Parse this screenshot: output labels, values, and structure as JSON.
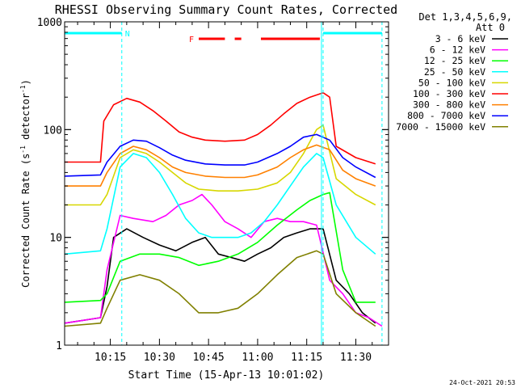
{
  "chart_data": {
    "type": "line",
    "title": "RHESSI Observing Summary Count Rates, Corrected",
    "xlabel": "Start Time (15-Apr-13 10:01:02)",
    "ylabel": "Corrected Count Rate (s⁻¹ detector⁻¹)",
    "ylabel_main": "Corrected Count Rate (s",
    "ylabel_sup1": "-1",
    "ylabel_mid": " detector",
    "ylabel_sup2": "-1",
    "ylabel_end": ")",
    "y_scale": "log",
    "ylim": [
      1,
      1000
    ],
    "xlim": [
      "10:01:02",
      "11:40:00"
    ],
    "x_ticks": [
      "10:15",
      "10:30",
      "10:45",
      "11:00",
      "11:15",
      "11:30"
    ],
    "y_ticks": [
      {
        "value": 1,
        "label": "1"
      },
      {
        "value": 10,
        "label": "10"
      },
      {
        "value": 100,
        "label": "100"
      },
      {
        "value": 1000,
        "label": "1000"
      }
    ],
    "legend_header": [
      "Det 1,3,4,5,6,9,",
      "Att 0"
    ],
    "legend_placement": "right",
    "grid": false,
    "annotations": {
      "night_label": "N",
      "flare_label": "F",
      "night_intervals": [
        [
          "10:01:02",
          "10:18:30"
        ],
        [
          "11:20:00",
          "11:38:00"
        ]
      ],
      "flare_intervals": [
        [
          "10:42:00",
          "10:50:00"
        ],
        [
          "10:53:00",
          "10:55:00"
        ],
        [
          "11:01:00",
          "11:19:00"
        ]
      ],
      "vertical_dashed_lines": [
        "10:18:30",
        "11:20:00",
        "11:38:00"
      ],
      "vertical_solid_line": "11:19:30"
    },
    "series": [
      {
        "name": "3 - 6 keV",
        "color": "#000000",
        "x": [
          "10:01:02",
          "10:12:00",
          "10:14:00",
          "10:16:00",
          "10:20:00",
          "10:25:00",
          "10:30:00",
          "10:35:00",
          "10:40:00",
          "10:44:00",
          "10:48:00",
          "10:52:00",
          "10:56:00",
          "11:00:00",
          "11:04:00",
          "11:08:00",
          "11:12:00",
          "11:16:00",
          "11:20:00",
          "11:24:00",
          "11:28:00",
          "11:32:00",
          "11:36:00"
        ],
        "y": [
          1.6,
          1.8,
          3.5,
          10,
          12,
          10,
          8.5,
          7.5,
          9,
          10,
          7,
          6.5,
          6,
          7,
          8,
          10,
          11,
          12,
          12,
          4,
          3,
          2,
          1.6
        ]
      },
      {
        "name": "6 - 12 keV",
        "color": "#ff00ff",
        "x": [
          "10:01:02",
          "10:12:00",
          "10:14:00",
          "10:18:00",
          "10:22:00",
          "10:28:00",
          "10:32:00",
          "10:36:00",
          "10:40:00",
          "10:43:00",
          "10:46:00",
          "10:50:00",
          "10:54:00",
          "10:58:00",
          "11:02:00",
          "11:06:00",
          "11:10:00",
          "11:14:00",
          "11:18:00",
          "11:22:00",
          "11:26:00",
          "11:30:00",
          "11:34:00",
          "11:38:00"
        ],
        "y": [
          1.6,
          1.8,
          5,
          16,
          15,
          14,
          16,
          20,
          22,
          25,
          20,
          14,
          12,
          10,
          14,
          15,
          14,
          14,
          13,
          4,
          3,
          2,
          1.8,
          1.5
        ]
      },
      {
        "name": "12 - 25 keV",
        "color": "#00ff00",
        "x": [
          "10:01:02",
          "10:12:00",
          "10:14:00",
          "10:18:00",
          "10:24:00",
          "10:30:00",
          "10:36:00",
          "10:42:00",
          "10:48:00",
          "10:54:00",
          "11:00:00",
          "11:06:00",
          "11:12:00",
          "11:16:00",
          "11:20:00",
          "11:22:00",
          "11:26:00",
          "11:30:00",
          "11:36:00"
        ],
        "y": [
          2.5,
          2.6,
          3,
          6,
          7,
          7,
          6.5,
          5.5,
          6,
          7,
          9,
          13,
          18,
          22,
          25,
          26,
          5,
          2.5,
          2.5
        ]
      },
      {
        "name": "25 - 50 keV",
        "color": "#00ffff",
        "x": [
          "10:01:02",
          "10:12:00",
          "10:14:00",
          "10:18:00",
          "10:22:00",
          "10:26:00",
          "10:30:00",
          "10:34:00",
          "10:38:00",
          "10:42:00",
          "10:46:00",
          "10:50:00",
          "10:54:00",
          "10:58:00",
          "11:02:00",
          "11:06:00",
          "11:10:00",
          "11:14:00",
          "11:18:00",
          "11:20:00",
          "11:24:00",
          "11:30:00",
          "11:36:00"
        ],
        "y": [
          7,
          7.5,
          12,
          45,
          60,
          55,
          40,
          25,
          15,
          11,
          10,
          10,
          10,
          11,
          14,
          20,
          30,
          45,
          60,
          55,
          20,
          10,
          7
        ]
      },
      {
        "name": "50 - 100 keV",
        "color": "#d7d700",
        "x": [
          "10:01:02",
          "10:12:00",
          "10:14:00",
          "10:18:00",
          "10:22:00",
          "10:26:00",
          "10:30:00",
          "10:34:00",
          "10:38:00",
          "10:42:00",
          "10:48:00",
          "10:54:00",
          "11:00:00",
          "11:06:00",
          "11:10:00",
          "11:14:00",
          "11:18:00",
          "11:20:00",
          "11:24:00",
          "11:30:00",
          "11:36:00"
        ],
        "y": [
          20,
          20,
          25,
          55,
          65,
          60,
          50,
          40,
          32,
          28,
          27,
          27,
          28,
          32,
          40,
          60,
          100,
          110,
          35,
          25,
          20
        ]
      },
      {
        "name": "100 - 300 keV",
        "color": "#ff0000",
        "x": [
          "10:01:02",
          "10:12:00",
          "10:13:00",
          "10:16:00",
          "10:20:00",
          "10:24:00",
          "10:28:00",
          "10:32:00",
          "10:36:00",
          "10:40:00",
          "10:44:00",
          "10:50:00",
          "10:56:00",
          "11:00:00",
          "11:04:00",
          "11:08:00",
          "11:12:00",
          "11:16:00",
          "11:20:00",
          "11:22:00",
          "11:24:00",
          "11:30:00",
          "11:36:00"
        ],
        "y": [
          50,
          50,
          120,
          170,
          195,
          180,
          150,
          120,
          95,
          85,
          80,
          78,
          80,
          90,
          110,
          140,
          175,
          200,
          220,
          200,
          70,
          55,
          48
        ]
      },
      {
        "name": "300 - 800 keV",
        "color": "#ff8000",
        "x": [
          "10:01:02",
          "10:12:00",
          "10:14:00",
          "10:18:00",
          "10:22:00",
          "10:26:00",
          "10:30:00",
          "10:34:00",
          "10:38:00",
          "10:44:00",
          "10:50:00",
          "10:56:00",
          "11:00:00",
          "11:06:00",
          "11:10:00",
          "11:14:00",
          "11:18:00",
          "11:22:00",
          "11:26:00",
          "11:30:00",
          "11:36:00"
        ],
        "y": [
          30,
          30,
          40,
          60,
          70,
          65,
          55,
          45,
          40,
          37,
          36,
          36,
          38,
          45,
          55,
          65,
          72,
          65,
          42,
          35,
          30
        ]
      },
      {
        "name": "800 - 7000 keV",
        "color": "#0000ff",
        "x": [
          "10:01:02",
          "10:12:00",
          "10:14:00",
          "10:18:00",
          "10:22:00",
          "10:26:00",
          "10:30:00",
          "10:34:00",
          "10:38:00",
          "10:44:00",
          "10:50:00",
          "10:56:00",
          "11:00:00",
          "11:06:00",
          "11:10:00",
          "11:14:00",
          "11:18:00",
          "11:22:00",
          "11:26:00",
          "11:30:00",
          "11:36:00"
        ],
        "y": [
          37,
          38,
          50,
          70,
          80,
          78,
          68,
          58,
          52,
          48,
          47,
          47,
          50,
          60,
          70,
          85,
          90,
          80,
          55,
          45,
          36
        ]
      },
      {
        "name": "7000 - 15000 keV",
        "color": "#808000",
        "x": [
          "10:01:02",
          "10:12:00",
          "10:14:00",
          "10:18:00",
          "10:24:00",
          "10:30:00",
          "10:36:00",
          "10:42:00",
          "10:48:00",
          "10:54:00",
          "11:00:00",
          "11:06:00",
          "11:12:00",
          "11:18:00",
          "11:20:00",
          "11:24:00",
          "11:30:00",
          "11:36:00"
        ],
        "y": [
          1.5,
          1.6,
          2.2,
          4,
          4.5,
          4,
          3,
          2,
          2,
          2.2,
          3,
          4.5,
          6.5,
          7.5,
          7,
          3,
          2,
          1.5
        ]
      }
    ],
    "footer_timestamp": "24-Oct-2021 20:53"
  }
}
